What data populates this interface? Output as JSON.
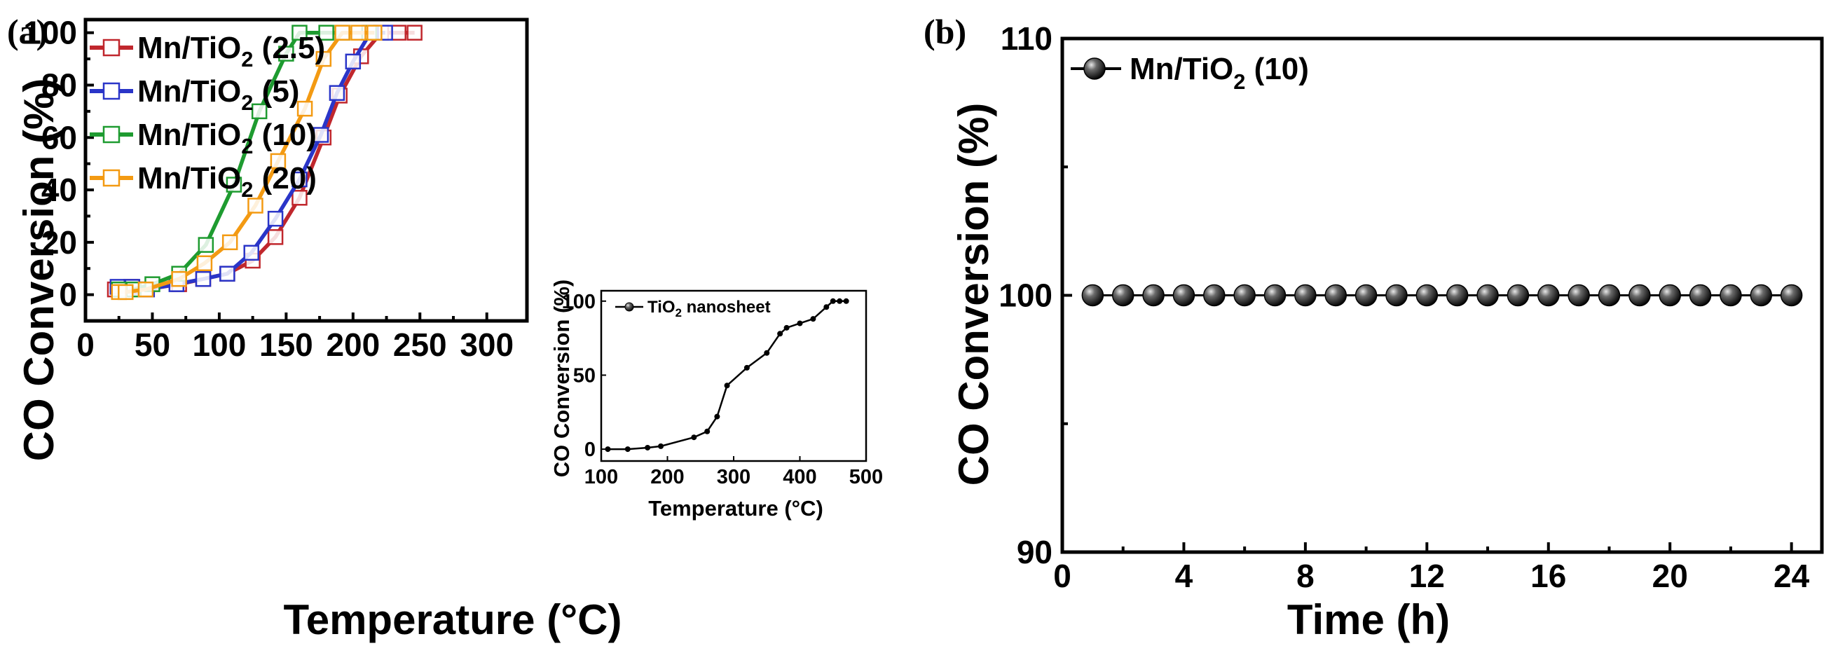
{
  "chart_data": [
    {
      "panel_label": "(a)",
      "type": "line",
      "xlabel": "Temperature (°C)",
      "ylabel": "CO Conversion (%)",
      "xlim": [
        0,
        330
      ],
      "ylim": [
        -10,
        105
      ],
      "xticks": [
        0,
        50,
        100,
        150,
        200,
        250,
        300
      ],
      "yticks": [
        0,
        20,
        40,
        60,
        80,
        100
      ],
      "legend_position": "top-left",
      "marker": "open-square",
      "series": [
        {
          "name": "Mn/TiO2 (2.5)",
          "label_main": "Mn/TiO",
          "label_sub": "2",
          "label_tail": " (2.5)",
          "color": "#c0272d",
          "x": [
            22,
            34,
            45,
            70,
            88,
            106,
            125,
            142,
            160,
            178,
            190,
            206,
            221,
            234,
            246
          ],
          "y": [
            2,
            3,
            2,
            4,
            6,
            8,
            13,
            22,
            37,
            60,
            76,
            91,
            100,
            100,
            100
          ]
        },
        {
          "name": "Mn/TiO2 (5)",
          "label_main": "Mn/TiO",
          "label_sub": "2",
          "label_tail": " (5)",
          "color": "#2a35c8",
          "x": [
            24,
            35,
            46,
            68,
            88,
            106,
            124,
            142,
            160,
            176,
            188,
            200,
            213,
            224
          ],
          "y": [
            3,
            3,
            2,
            4,
            6,
            8,
            16,
            29,
            44,
            61,
            77,
            89,
            100,
            100
          ]
        },
        {
          "name": "Mn/TiO2 (10)",
          "label_main": "Mn/TiO",
          "label_sub": "2",
          "label_tail": " (10)",
          "color": "#1e9b30",
          "x": [
            25,
            36,
            50,
            70,
            90,
            111,
            130,
            150,
            160,
            180,
            192,
            212
          ],
          "y": [
            2,
            2,
            4,
            8,
            19,
            42,
            70,
            92,
            100,
            100,
            100,
            100
          ]
        },
        {
          "name": "Mn/TiO2 (20)",
          "label_main": "Mn/TiO",
          "label_sub": "2",
          "label_tail": " (20)",
          "color": "#f39a12",
          "x": [
            25,
            30,
            45,
            70,
            89,
            108,
            127,
            144,
            164,
            178,
            192,
            204,
            216
          ],
          "y": [
            1,
            1,
            2,
            6,
            12,
            20,
            34,
            51,
            71,
            90,
            100,
            100,
            100
          ]
        }
      ]
    },
    {
      "panel_label": "inset",
      "type": "line",
      "xlabel": "Temperature (°C)",
      "ylabel": "CO Conversion (%)",
      "xlim": [
        100,
        500
      ],
      "ylim": [
        -8,
        107
      ],
      "xticks": [
        100,
        200,
        300,
        400,
        500
      ],
      "yticks": [
        0,
        50,
        100
      ],
      "legend_position": "top-left",
      "series": [
        {
          "name": "TiO2 nanosheet",
          "label_main": "TiO",
          "label_sub": "2",
          "label_tail": " nanosheet",
          "color": "#000000",
          "x": [
            110,
            140,
            170,
            190,
            240,
            260,
            275,
            290,
            320,
            350,
            370,
            380,
            400,
            420,
            440,
            450,
            460,
            470
          ],
          "y": [
            0,
            0,
            1,
            2,
            8,
            12,
            22,
            43,
            55,
            65,
            78,
            82,
            85,
            88,
            96,
            100,
            100,
            100
          ]
        }
      ]
    },
    {
      "panel_label": "(b)",
      "type": "line",
      "xlabel": "Time (h)",
      "ylabel": "CO Conversion (%)",
      "xlim": [
        0,
        25
      ],
      "ylim": [
        90,
        110
      ],
      "xticks": [
        0,
        4,
        8,
        12,
        16,
        20,
        24
      ],
      "yticks": [
        90,
        100,
        110
      ],
      "legend_position": "top-left",
      "marker": "filled-sphere",
      "series": [
        {
          "name": "Mn/TiO2 (10)",
          "label_main": "Mn/TiO",
          "label_sub": "2",
          "label_tail": " (10)",
          "color": "#000000",
          "x": [
            1,
            2,
            3,
            4,
            5,
            6,
            7,
            8,
            9,
            10,
            11,
            12,
            13,
            14,
            15,
            16,
            17,
            18,
            19,
            20,
            21,
            22,
            23,
            24
          ],
          "y": [
            100,
            100,
            100,
            100,
            100,
            100,
            100,
            100,
            100,
            100,
            100,
            100,
            100,
            100,
            100,
            100,
            100,
            100,
            100,
            100,
            100,
            100,
            100,
            100
          ]
        }
      ]
    }
  ]
}
